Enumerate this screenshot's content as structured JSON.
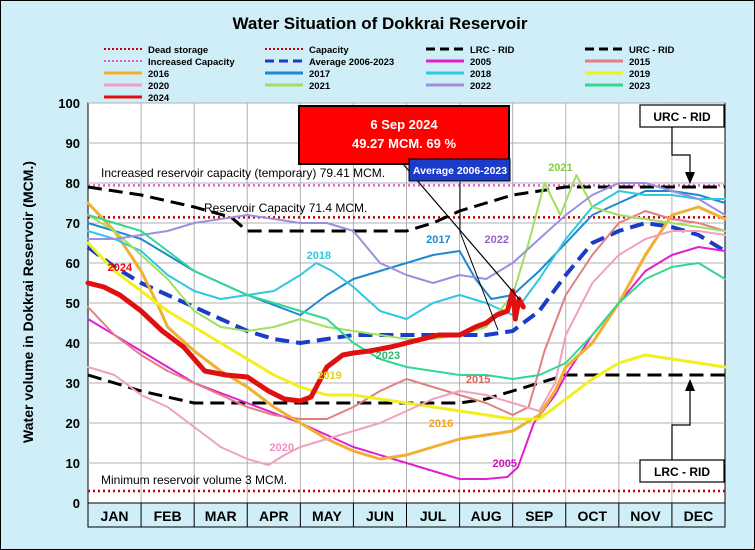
{
  "chart_data": {
    "type": "line",
    "title": "Water Situation of Dokkrai Reservoir",
    "ylabel": "Water volume in Dokkrai Reservoir (MCM.)",
    "xlabel": "",
    "ylim": [
      0,
      100
    ],
    "yticks": [
      0,
      10,
      20,
      30,
      40,
      50,
      60,
      70,
      80,
      90,
      100
    ],
    "xlim": [
      0,
      12
    ],
    "months": [
      "JAN",
      "FEB",
      "MAR",
      "APR",
      "MAY",
      "JUN",
      "JUL",
      "AUG",
      "SEP",
      "OCT",
      "NOV",
      "DEC"
    ],
    "grid": true,
    "legend_position": "top",
    "reference_lines": [
      {
        "name": "Dead storage",
        "value": 3,
        "color": "#c00000",
        "style": "dotted"
      },
      {
        "name": "Capacity",
        "value": 71.4,
        "color": "#c00000",
        "style": "dotted"
      },
      {
        "name": "Increased Capacity",
        "value": 79.41,
        "color": "#e060c0",
        "style": "dotted"
      }
    ],
    "series": [
      {
        "name": "LRC - RID",
        "color": "#000000",
        "style": "dash",
        "width": 3,
        "x": [
          0,
          1,
          2,
          3,
          4,
          5,
          6,
          7,
          7.5,
          8,
          8.5,
          9,
          10,
          11,
          12
        ],
        "y": [
          32,
          28,
          25,
          25,
          25,
          25,
          25,
          25,
          26,
          28,
          30,
          32,
          32,
          32,
          32
        ]
      },
      {
        "name": "URC - RID",
        "color": "#000000",
        "style": "dash",
        "width": 3,
        "x": [
          0,
          1,
          2,
          2.7,
          3,
          4,
          5,
          6,
          6.5,
          7,
          7.5,
          8,
          8.5,
          9,
          10,
          11,
          12
        ],
        "y": [
          79,
          77,
          74,
          71.4,
          68,
          68,
          68,
          68,
          70,
          73,
          75,
          77,
          78,
          79,
          79,
          79,
          79
        ]
      },
      {
        "name": "Average 2006-2023",
        "color": "#1a3cc8",
        "style": "dash",
        "width": 4,
        "x": [
          0,
          0.5,
          1,
          1.5,
          2,
          2.5,
          3,
          3.5,
          4,
          4.5,
          5,
          5.5,
          6,
          6.5,
          7,
          7.5,
          8,
          8.5,
          9,
          9.5,
          10,
          10.5,
          11,
          11.5,
          12
        ],
        "y": [
          64,
          59,
          55,
          52,
          49,
          46,
          43,
          41,
          40,
          41,
          42,
          42,
          42,
          42,
          42,
          42,
          43,
          48,
          57,
          65,
          68,
          70,
          69,
          67,
          63
        ]
      },
      {
        "name": "2005",
        "color": "#e020d0",
        "style": "solid",
        "width": 2,
        "x": [
          0,
          1,
          2,
          3,
          4,
          5,
          6,
          7,
          7.5,
          7.9,
          8.1,
          8.4,
          8.8,
          9,
          9.5,
          10,
          10.5,
          11,
          11.5,
          12
        ],
        "y": [
          46,
          38,
          30,
          25,
          20,
          14,
          10,
          6,
          6,
          6.5,
          9,
          20,
          27,
          32,
          42,
          50,
          58,
          62,
          64,
          63
        ]
      },
      {
        "name": "2015",
        "color": "#e08080",
        "style": "solid",
        "width": 2,
        "x": [
          0,
          0.5,
          1,
          1.5,
          2,
          2.5,
          3,
          3.5,
          4,
          4.5,
          5,
          5.5,
          6,
          6.5,
          7,
          7.5,
          8,
          8.3,
          8.6,
          9,
          9.5,
          10,
          10.5,
          11,
          11.5,
          12
        ],
        "y": [
          49,
          42,
          37,
          33,
          30,
          27,
          24,
          22,
          21,
          21,
          24,
          28,
          31,
          29,
          27,
          25,
          22,
          24,
          38,
          52,
          62,
          70,
          73,
          71,
          70,
          68
        ]
      },
      {
        "name": "2016",
        "color": "#f0b030",
        "style": "solid",
        "width": 3,
        "x": [
          0,
          0.5,
          1,
          1.3,
          1.5,
          2,
          2.5,
          3,
          3.5,
          4,
          4.5,
          5,
          5.5,
          6,
          6.5,
          7,
          7.5,
          8,
          8.5,
          8.8,
          9,
          9.5,
          10,
          10.5,
          11,
          11.5,
          12
        ],
        "y": [
          75,
          68,
          58,
          50,
          44,
          38,
          33,
          29,
          24,
          20,
          16,
          13,
          11,
          12,
          14,
          16,
          17,
          18,
          22,
          28,
          34,
          40,
          50,
          62,
          72,
          74,
          71
        ]
      },
      {
        "name": "2017",
        "color": "#1e88d0",
        "style": "solid",
        "width": 2,
        "x": [
          0,
          1,
          2,
          3,
          4,
          4.5,
          5,
          5.5,
          6,
          6.5,
          7,
          7.3,
          7.6,
          8,
          8.5,
          9,
          9.5,
          10,
          10.5,
          11,
          11.5,
          12
        ],
        "y": [
          70,
          66,
          58,
          52,
          47,
          52,
          56,
          58,
          60,
          62,
          63,
          56,
          51,
          52,
          58,
          65,
          72,
          75,
          78,
          78,
          77,
          75
        ]
      },
      {
        "name": "2018",
        "color": "#30c8e0",
        "style": "solid",
        "width": 2,
        "x": [
          0,
          0.5,
          1,
          1.5,
          2,
          2.5,
          3,
          3.5,
          4,
          4.3,
          4.6,
          5,
          5.5,
          6,
          6.5,
          7,
          7.5,
          8,
          8.5,
          9,
          9.5,
          10,
          10.5,
          11,
          11.5,
          12
        ],
        "y": [
          68,
          66,
          63,
          57,
          53,
          51,
          52,
          53,
          57,
          60,
          58,
          54,
          48,
          46,
          50,
          52,
          50,
          47,
          56,
          66,
          74,
          78,
          77,
          77,
          76,
          76
        ]
      },
      {
        "name": "2019",
        "color": "#f0f020",
        "style": "solid",
        "width": 3,
        "x": [
          0,
          0.5,
          1,
          1.5,
          2,
          2.5,
          3,
          3.5,
          4,
          4.5,
          5,
          5.5,
          6,
          6.5,
          7,
          7.5,
          8,
          8.5,
          9,
          9.5,
          10,
          10.5,
          11,
          11.5,
          12
        ],
        "y": [
          65,
          58,
          53,
          48,
          44,
          40,
          36,
          32,
          29,
          27,
          27,
          26,
          25,
          24,
          23,
          22,
          21,
          21,
          26,
          31,
          35,
          37,
          36,
          35,
          34
        ]
      },
      {
        "name": "2020",
        "color": "#f0a0c0",
        "style": "solid",
        "width": 2,
        "x": [
          0,
          0.5,
          1,
          1.5,
          2,
          2.5,
          3,
          3.4,
          3.7,
          4,
          4.5,
          5,
          5.5,
          6,
          6.5,
          7,
          7.5,
          8,
          8.5,
          8.8,
          9,
          9.5,
          10,
          10.5,
          11,
          11.5,
          12
        ],
        "y": [
          34,
          32,
          27,
          24,
          19,
          14,
          11,
          9.5,
          12,
          14,
          16,
          18,
          20,
          23,
          26,
          28,
          27,
          25,
          23,
          30,
          42,
          55,
          62,
          66,
          68,
          68,
          67
        ]
      },
      {
        "name": "2021",
        "color": "#a0e060",
        "style": "solid",
        "width": 2,
        "x": [
          0,
          0.5,
          1,
          1.5,
          2,
          2.5,
          3,
          3.5,
          4,
          4.5,
          5,
          5.5,
          6,
          6.5,
          7,
          7.5,
          8,
          8.3,
          8.6,
          8.9,
          9.2,
          9.5,
          10,
          10.5,
          11,
          11.5,
          12
        ],
        "y": [
          72,
          68,
          62,
          56,
          48,
          44,
          43,
          44,
          46,
          44,
          43,
          42,
          41,
          41,
          42,
          44,
          52,
          65,
          80,
          72,
          82,
          74,
          72,
          71,
          70,
          69,
          68
        ]
      },
      {
        "name": "2022",
        "color": "#9a90e0",
        "style": "solid",
        "width": 2,
        "x": [
          0,
          0.5,
          1,
          1.5,
          2,
          2.5,
          3,
          3.5,
          4,
          4.5,
          5,
          5.5,
          6,
          6.5,
          7,
          7.5,
          8,
          8.5,
          9,
          9.5,
          10,
          10.5,
          11,
          11.5,
          12
        ],
        "y": [
          66,
          66,
          67,
          68,
          70,
          71,
          72,
          71,
          70,
          70,
          68,
          60,
          57,
          55,
          57,
          56,
          60,
          66,
          72,
          77,
          80,
          80,
          78,
          76,
          72
        ]
      },
      {
        "name": "2023",
        "color": "#30d890",
        "style": "solid",
        "width": 2,
        "x": [
          0,
          0.5,
          1,
          1.5,
          2,
          2.5,
          3,
          3.5,
          4,
          4.5,
          5,
          5.5,
          6,
          6.5,
          7,
          7.5,
          8,
          8.5,
          9,
          9.5,
          10,
          10.5,
          11,
          11.5,
          12
        ],
        "y": [
          72,
          70,
          68,
          63,
          58,
          55,
          52,
          50,
          48,
          46,
          40,
          36,
          34,
          33,
          32,
          32,
          31,
          32,
          35,
          42,
          50,
          56,
          59,
          60,
          56
        ]
      },
      {
        "name": "2024",
        "color": "#e01010",
        "style": "solid",
        "width": 5,
        "x": [
          0,
          0.3,
          0.6,
          1,
          1.4,
          1.8,
          2.2,
          2.6,
          3,
          3.4,
          3.7,
          4,
          4.2,
          4.5,
          4.8,
          5,
          5.3,
          5.7,
          6,
          6.3,
          6.6,
          7,
          7.3,
          7.5,
          7.7,
          7.9,
          8.0,
          8.05,
          8.12,
          8.2
        ],
        "y": [
          55,
          54,
          52,
          48,
          43,
          39,
          33,
          32,
          31.5,
          28,
          26,
          25.5,
          26.5,
          34,
          37,
          37.5,
          38,
          39,
          40,
          41,
          42,
          42,
          44,
          45,
          47,
          48,
          53,
          46,
          51,
          49
        ]
      }
    ],
    "series_labels": [
      {
        "series": "2024",
        "text": "2024",
        "x": 0.6,
        "y": 58,
        "color": "#e01010"
      },
      {
        "series": "2018",
        "text": "2018",
        "x": 4.35,
        "y": 61,
        "color": "#30c8e0"
      },
      {
        "series": "2017",
        "text": "2017",
        "x": 6.6,
        "y": 65,
        "color": "#1e88d0"
      },
      {
        "series": "2022",
        "text": "2022",
        "x": 7.7,
        "y": 65,
        "color": "#9a60c8"
      },
      {
        "series": "2021",
        "text": "2021",
        "x": 8.9,
        "y": 83,
        "color": "#80d040"
      },
      {
        "series": "2019",
        "text": "2019",
        "x": 4.55,
        "y": 31,
        "color": "#e0d020"
      },
      {
        "series": "2023",
        "text": "2023",
        "x": 5.65,
        "y": 36,
        "color": "#30b870"
      },
      {
        "series": "2015",
        "text": "2015",
        "x": 7.35,
        "y": 30,
        "color": "#e06060"
      },
      {
        "series": "2016",
        "text": "2016",
        "x": 6.65,
        "y": 19,
        "color": "#f0a020"
      },
      {
        "series": "2020",
        "text": "2020",
        "x": 3.65,
        "y": 13,
        "color": "#f090c0"
      },
      {
        "series": "2005",
        "text": "2005",
        "x": 7.85,
        "y": 9,
        "color": "#d010c0"
      }
    ],
    "annotations": {
      "increased_capacity_text": "Increased reservoir capacity (temporary) 79.41 MCM.",
      "capacity_text": "Reservoir Capacity 71.4 MCM.",
      "dead_storage_text": "Minimum reservoir volume 3 MCM.",
      "current_date": "6 Sep 2024",
      "current_value": "49.27 MCM. 69 %",
      "average_box": "Average 2006-2023",
      "urc_box": "URC - RID",
      "lrc_box": "LRC - RID"
    },
    "legend": [
      {
        "label": "Dead storage",
        "color": "#c00000",
        "style": "dotted"
      },
      {
        "label": "Capacity",
        "color": "#c00000",
        "style": "dotted"
      },
      {
        "label": "LRC - RID",
        "color": "#000000",
        "style": "dash"
      },
      {
        "label": "URC - RID",
        "color": "#000000",
        "style": "dash"
      },
      {
        "label": "Increased Capacity",
        "color": "#e060c0",
        "style": "dotted"
      },
      {
        "label": "Average 2006-2023",
        "color": "#1a3cc8",
        "style": "dash"
      },
      {
        "label": "2005",
        "color": "#e020d0",
        "style": "solid"
      },
      {
        "label": "2015",
        "color": "#e08080",
        "style": "solid"
      },
      {
        "label": "2016",
        "color": "#f0b030",
        "style": "solid"
      },
      {
        "label": "2017",
        "color": "#1e88d0",
        "style": "solid"
      },
      {
        "label": "2018",
        "color": "#30c8e0",
        "style": "solid"
      },
      {
        "label": "2019",
        "color": "#f0f020",
        "style": "solid"
      },
      {
        "label": "2020",
        "color": "#f0a0c0",
        "style": "solid"
      },
      {
        "label": "2021",
        "color": "#a0e060",
        "style": "solid"
      },
      {
        "label": "2022",
        "color": "#9a90e0",
        "style": "solid"
      },
      {
        "label": "2023",
        "color": "#30d890",
        "style": "solid"
      },
      {
        "label": "2024",
        "color": "#e01010",
        "style": "solid"
      }
    ]
  }
}
